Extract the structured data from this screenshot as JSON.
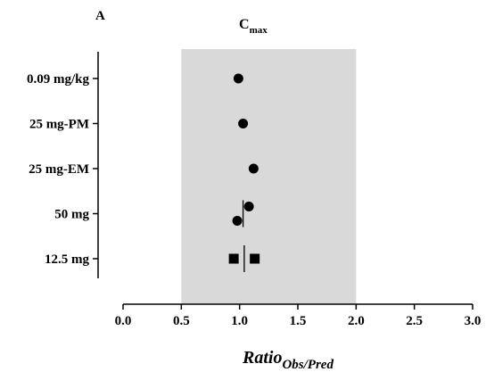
{
  "panel_label": "A",
  "chart_data": {
    "type": "scatter",
    "title": "C",
    "title_subscript": "max",
    "xlabel": "Ratio",
    "xlabel_subscript": "Obs/Pred",
    "ylabel": "",
    "xlim": [
      0.0,
      3.0
    ],
    "x_ticks": [
      "0.0",
      "0.5",
      "1.0",
      "1.5",
      "2.0",
      "2.5",
      "3.0"
    ],
    "categories": [
      "0.09 mg/kg",
      "25 mg-PM",
      "25 mg-EM",
      "50 mg",
      "12.5 mg"
    ],
    "shaded_range": [
      0.5,
      2.0
    ],
    "shaded_color": "#d9d9d9",
    "points": [
      {
        "category": "0.09 mg/kg",
        "x": 0.99,
        "offset": 0.0,
        "marker": "circle"
      },
      {
        "category": "25 mg-PM",
        "x": 1.03,
        "offset": 0.0,
        "marker": "circle"
      },
      {
        "category": "25 mg-EM",
        "x": 1.12,
        "offset": 0.0,
        "marker": "circle"
      },
      {
        "category": "50 mg",
        "x": 1.08,
        "offset": -0.15,
        "marker": "circle"
      },
      {
        "category": "50 mg",
        "x": 0.98,
        "offset": 0.15,
        "marker": "circle"
      },
      {
        "category": "12.5 mg",
        "x": 0.95,
        "offset": 0.0,
        "marker": "square"
      },
      {
        "category": "12.5 mg",
        "x": 1.13,
        "offset": 0.0,
        "marker": "square"
      }
    ],
    "mean_lines": [
      {
        "category": "50 mg",
        "x": 1.03
      },
      {
        "category": "12.5 mg",
        "x": 1.04
      }
    ],
    "grid": false,
    "legend": "none"
  }
}
